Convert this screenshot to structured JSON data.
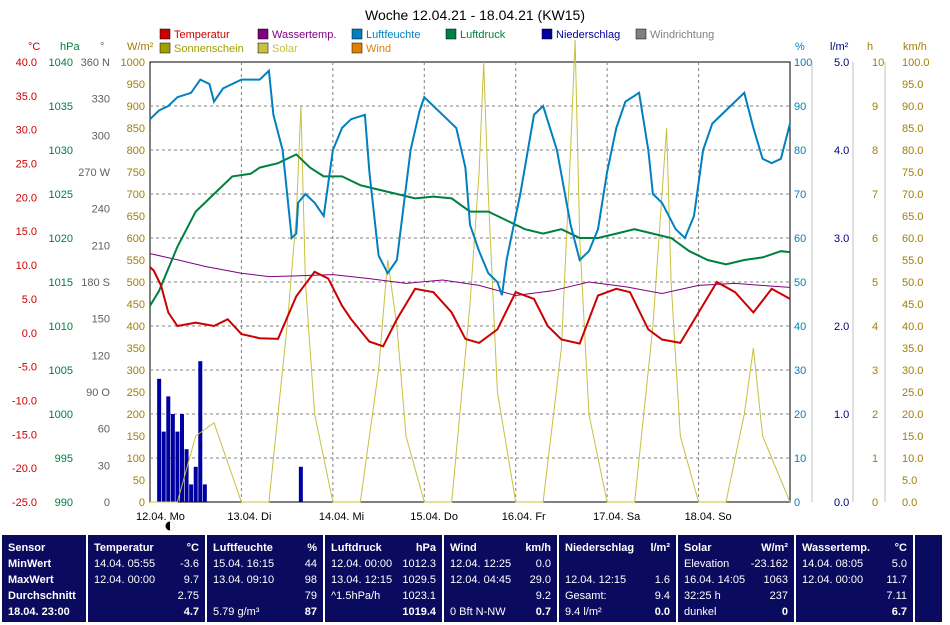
{
  "chart_data": {
    "type": "line",
    "title": "Woche 12.04.21 - 18.04.21 (KW15)",
    "x_labels": [
      "12.04. Mo",
      "13.04. Di",
      "14.04. Mi",
      "15.04. Do",
      "16.04. Fr",
      "17.04. Sa",
      "18.04. So"
    ],
    "legend": [
      {
        "name": "Temperatur",
        "color": "#cc0000"
      },
      {
        "name": "Wassertemp.",
        "color": "#800080"
      },
      {
        "name": "Luftfeuchte",
        "color": "#0080c0"
      },
      {
        "name": "Luftdruck",
        "color": "#008040"
      },
      {
        "name": "Niederschlag",
        "color": "#0000a0"
      },
      {
        "name": "Windrichtung",
        "color": "#808080"
      },
      {
        "name": "Sonnenschein",
        "color": "#a0a000"
      },
      {
        "name": "Solar",
        "color": "#c8c040"
      },
      {
        "name": "Wind",
        "color": "#e08000"
      }
    ],
    "axes": [
      {
        "unit": "°C",
        "color": "#cc0000",
        "ticks": [
          "40.0",
          "35.0",
          "30.0",
          "25.0",
          "20.0",
          "15.0",
          "10.0",
          "5.0",
          "0.0",
          "-5.0",
          "-10.0",
          "-15.0",
          "-20.0",
          "-25.0"
        ]
      },
      {
        "unit": "hPa",
        "color": "#008040",
        "ticks": [
          "1040",
          "1035",
          "1030",
          "1025",
          "1020",
          "1015",
          "1010",
          "1005",
          "1000",
          "995",
          "990"
        ]
      },
      {
        "unit": "°",
        "color": "#606060",
        "ticks": [
          "360 N",
          "330",
          "300",
          "270 W",
          "240",
          "210",
          "180 S",
          "150",
          "120",
          "90 O",
          "60",
          "30",
          "0"
        ]
      },
      {
        "unit": "W/m²",
        "color": "#a08000",
        "ticks": [
          "1000",
          "950",
          "900",
          "850",
          "800",
          "750",
          "700",
          "650",
          "600",
          "550",
          "500",
          "450",
          "400",
          "350",
          "300",
          "250",
          "200",
          "150",
          "100",
          "50",
          "0"
        ]
      },
      {
        "unit": "%",
        "color": "#0080c0",
        "ticks": [
          "100",
          "90",
          "80",
          "70",
          "60",
          "50",
          "40",
          "30",
          "20",
          "10",
          "0"
        ]
      },
      {
        "unit": "l/m²",
        "color": "#000080",
        "ticks": [
          "5.0",
          "4.0",
          "3.0",
          "2.0",
          "1.0",
          "0.0"
        ]
      },
      {
        "unit": "h",
        "color": "#a08000",
        "ticks": [
          "10",
          "9",
          "8",
          "7",
          "6",
          "5",
          "4",
          "3",
          "2",
          "1",
          "0"
        ]
      },
      {
        "unit": "km/h",
        "color": "#a08000",
        "ticks": [
          "100.0",
          "95.0",
          "90.0",
          "85.0",
          "80.0",
          "75.0",
          "70.0",
          "65.0",
          "60.0",
          "55.0",
          "50.0",
          "45.0",
          "40.0",
          "35.0",
          "30.0",
          "25.0",
          "20.0",
          "15.0",
          "10.0",
          "5.0",
          "0.0"
        ]
      }
    ],
    "series": [
      {
        "name": "Temperatur",
        "unit": "°C",
        "x": [
          0,
          0.04,
          0.12,
          0.2,
          0.3,
          0.5,
          0.7,
          0.85,
          1.0,
          1.2,
          1.4,
          1.6,
          1.8,
          1.95,
          2.1,
          2.2,
          2.4,
          2.55,
          2.7,
          2.9,
          3.1,
          3.3,
          3.45,
          3.6,
          3.8,
          4.0,
          4.2,
          4.35,
          4.5,
          4.7,
          4.9,
          5.1,
          5.25,
          5.45,
          5.6,
          5.8,
          6.0,
          6.2,
          6.4,
          6.6,
          6.8,
          7.0
        ],
        "y": [
          9.7,
          9.2,
          7.0,
          3.0,
          1.0,
          1.5,
          1.0,
          2.0,
          -0.2,
          -0.8,
          -0.9,
          5.4,
          9.0,
          8.0,
          4.0,
          2.0,
          -1.3,
          -2.0,
          2.0,
          6.5,
          6.0,
          3.0,
          -0.9,
          -1.5,
          0.5,
          6.0,
          5.0,
          1.0,
          -1.0,
          -1.6,
          5.5,
          6.5,
          6.0,
          0.5,
          -1.0,
          -1.5,
          3.0,
          7.5,
          6.0,
          3.0,
          6.5,
          5.0
        ]
      },
      {
        "name": "Wassertemp.",
        "unit": "°C",
        "x": [
          0,
          0.3,
          0.6,
          1.0,
          1.3,
          1.6,
          2.0,
          2.4,
          2.8,
          3.2,
          3.6,
          4.0,
          4.4,
          4.8,
          5.2,
          5.6,
          6.0,
          6.4,
          6.8,
          7.0
        ],
        "y": [
          11.7,
          10.8,
          9.8,
          8.8,
          8.3,
          8.4,
          8.6,
          8.0,
          7.3,
          7.8,
          7.0,
          5.5,
          6.2,
          7.5,
          6.8,
          5.8,
          7.0,
          7.3,
          6.9,
          6.7
        ]
      },
      {
        "name": "Luftfeuchte",
        "unit": "%",
        "x": [
          0,
          0.1,
          0.2,
          0.3,
          0.45,
          0.55,
          0.65,
          0.7,
          0.8,
          1.0,
          1.2,
          1.3,
          1.35,
          1.45,
          1.55,
          1.6,
          1.62,
          1.7,
          1.8,
          1.9,
          2.0,
          2.1,
          2.2,
          2.35,
          2.4,
          2.5,
          2.6,
          2.7,
          2.85,
          2.95,
          3.0,
          3.1,
          3.2,
          3.35,
          3.45,
          3.5,
          3.6,
          3.7,
          3.8,
          3.85,
          3.9,
          3.95,
          4.05,
          4.2,
          4.3,
          4.45,
          4.6,
          4.7,
          4.8,
          4.9,
          5.0,
          5.1,
          5.2,
          5.35,
          5.45,
          5.5,
          5.6,
          5.75,
          5.85,
          5.95,
          6.05,
          6.15,
          6.3,
          6.4,
          6.5,
          6.6,
          6.7,
          6.8,
          6.9,
          7.0
        ],
        "y": [
          87,
          89,
          90,
          92,
          93,
          96,
          95,
          91,
          94,
          96,
          96,
          98,
          88,
          80,
          60,
          61,
          68,
          70,
          68,
          65,
          80,
          85,
          87,
          88,
          75,
          56,
          52,
          55,
          80,
          89,
          92,
          90,
          88,
          85,
          76,
          63,
          57,
          52,
          50,
          47,
          55,
          60,
          70,
          88,
          90,
          80,
          63,
          55,
          57,
          62,
          75,
          85,
          91,
          93,
          80,
          70,
          68,
          62,
          60,
          65,
          80,
          86,
          89,
          91,
          93,
          85,
          78,
          77,
          78,
          86
        ]
      },
      {
        "name": "Luftdruck",
        "unit": "hPa",
        "x": [
          0,
          0.1,
          0.3,
          0.5,
          0.7,
          0.9,
          1.1,
          1.2,
          1.4,
          1.6,
          1.75,
          1.9,
          2.1,
          2.3,
          2.5,
          2.7,
          2.9,
          3.1,
          3.3,
          3.5,
          3.7,
          3.9,
          4.1,
          4.3,
          4.5,
          4.7,
          4.9,
          5.1,
          5.3,
          5.5,
          5.7,
          5.9,
          6.1,
          6.3,
          6.5,
          6.7,
          6.9,
          7.0
        ],
        "y": [
          1012.3,
          1014,
          1019,
          1023,
          1025,
          1027,
          1027.3,
          1028,
          1028.5,
          1029.5,
          1028,
          1027,
          1027,
          1026,
          1025.5,
          1025,
          1024.5,
          1024.7,
          1024.5,
          1023,
          1023,
          1022,
          1021,
          1020.5,
          1021,
          1020,
          1020,
          1020.5,
          1021,
          1020.5,
          1020,
          1018.5,
          1017.5,
          1017,
          1017.5,
          1017.8,
          1018.5,
          1018.4
        ]
      },
      {
        "name": "Niederschlag",
        "unit": "l/m²",
        "x": [
          0.1,
          0.15,
          0.2,
          0.25,
          0.3,
          0.35,
          0.4,
          0.45,
          0.5,
          0.55,
          0.6,
          1.65
        ],
        "y": [
          1.4,
          0.8,
          1.2,
          1.0,
          0.8,
          1.0,
          0.6,
          0.2,
          0.4,
          1.6,
          0.2,
          0.4
        ]
      },
      {
        "name": "Solar",
        "unit": "W/m²",
        "x": [
          0,
          0.3,
          0.5,
          0.7,
          1.0,
          1.3,
          1.5,
          1.6,
          1.65,
          1.7,
          1.8,
          2.0,
          2.3,
          2.5,
          2.6,
          2.7,
          2.8,
          3.0,
          3.3,
          3.5,
          3.6,
          3.65,
          3.7,
          3.8,
          4.0,
          4.3,
          4.5,
          4.6,
          4.65,
          4.7,
          4.8,
          5.0,
          5.3,
          5.5,
          5.6,
          5.65,
          5.7,
          5.8,
          6.0,
          6.3,
          6.5,
          6.6,
          6.7,
          6.8,
          7.0
        ],
        "y": [
          0,
          0,
          150,
          180,
          0,
          0,
          400,
          650,
          900,
          500,
          200,
          0,
          0,
          300,
          550,
          400,
          150,
          0,
          0,
          450,
          750,
          1000,
          700,
          250,
          0,
          0,
          350,
          800,
          1050,
          600,
          200,
          0,
          0,
          400,
          700,
          850,
          500,
          150,
          0,
          0,
          200,
          350,
          150,
          100,
          0
        ]
      }
    ]
  },
  "summary": {
    "sensor": {
      "title": "Sensor",
      "min": "MinWert",
      "max": "MaxWert",
      "avg": "Durchschnitt",
      "now": "18.04. 23:00"
    },
    "temperatur": {
      "title": "Temperatur",
      "unit": "°C",
      "min_time": "14.04. 05:55",
      "min_val": "-3.6",
      "max_time": "12.04. 00:00",
      "max_val": "9.7",
      "avg_val": "2.75",
      "now_val": "4.7"
    },
    "luftfeuchte": {
      "title": "Luftfeuchte",
      "unit": "%",
      "min_time": "15.04. 16:15",
      "min_val": "44",
      "max_time": "13.04. 09:10",
      "max_val": "98",
      "avg_val": "79",
      "now_extra": "5.79 g/m³",
      "now_val": "87"
    },
    "luftdruck": {
      "title": "Luftdruck",
      "unit": "hPa",
      "min_time": "12.04. 00:00",
      "min_val": "1012.3",
      "max_time": "13.04. 12:15",
      "max_val": "1029.5",
      "avg_label": "^1.5hPa/h",
      "avg_val": "1023.1",
      "now_val": "1019.4"
    },
    "wind": {
      "title": "Wind",
      "unit": "km/h",
      "min_time": "12.04. 12:25",
      "min_val": "0.0",
      "max_time": "12.04. 04:45",
      "max_val": "29.0",
      "avg_val": "9.2",
      "now_extra": "0 Bft N-NW",
      "now_val": "0.7"
    },
    "niederschlag": {
      "title": "Niederschlag",
      "unit": "l/m²",
      "max_time": "12.04. 12:15",
      "max_val": "1.6",
      "avg_label": "Gesamt:",
      "avg_val": "9.4",
      "now_extra": "9.4 l/m²",
      "now_val": "0.0"
    },
    "solar": {
      "title": "Solar",
      "unit": "W/m²",
      "min_label": "Elevation",
      "min_val": "-23.162",
      "max_time": "16.04. 14:05",
      "max_val": "1063",
      "avg_label": "32:25 h",
      "avg_val": "237",
      "now_extra": "dunkel",
      "now_val": "0"
    },
    "wassertemp": {
      "title": "Wassertemp.",
      "unit": "°C",
      "min_time": "14.04. 08:05",
      "min_val": "5.0",
      "max_time": "12.04. 00:00",
      "max_val": "11.7",
      "avg_val": "7.11",
      "now_val": "6.7"
    }
  }
}
